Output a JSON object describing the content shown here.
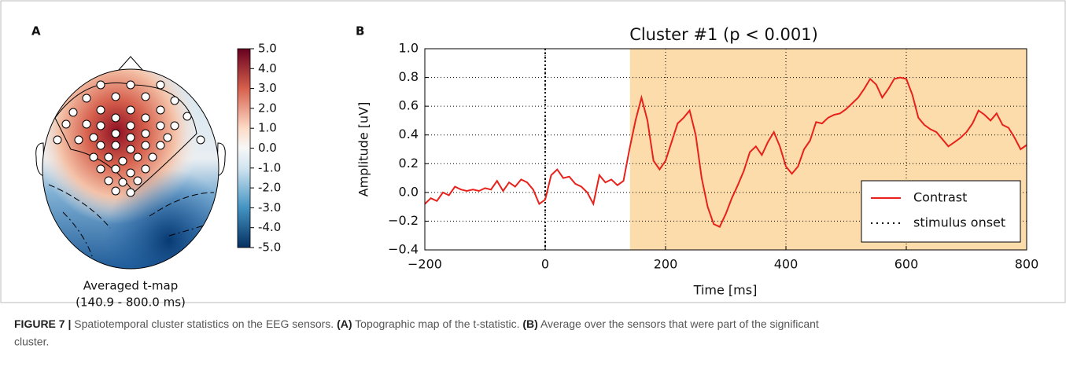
{
  "chart_data": [
    {
      "type": "topomap",
      "panel_label": "A",
      "labels": [
        "Averaged t-map",
        "(140.9 - 800.0 ms)"
      ],
      "clim": [
        -5,
        5
      ],
      "cticks": [
        {
          "value": 5,
          "label": "5.0"
        },
        {
          "value": 4,
          "label": "4.0"
        },
        {
          "value": 3,
          "label": "3.0"
        },
        {
          "value": 2,
          "label": "2.0"
        },
        {
          "value": 1,
          "label": "1.0"
        },
        {
          "value": 0,
          "label": "0.0"
        },
        {
          "value": -1,
          "label": "-1.0"
        },
        {
          "value": -2,
          "label": "-2.0"
        },
        {
          "value": -3,
          "label": "-3.0"
        },
        {
          "value": -4,
          "label": "-4.0"
        },
        {
          "value": -5,
          "label": "-5.0"
        }
      ]
    },
    {
      "type": "line",
      "panel_label": "B",
      "title": "Cluster #1 (p < 0.001)",
      "xlabel": "Time [ms]",
      "ylabel": "Amplitude [uV]",
      "xlim": [
        -200,
        800
      ],
      "ylim": [
        -0.4,
        1.0
      ],
      "xticks": [
        {
          "value": -200,
          "label": "−200"
        },
        0,
        200,
        400,
        600,
        800
      ],
      "yticks": [
        {
          "value": -0.4,
          "label": "−0.4"
        },
        {
          "value": -0.2,
          "label": "−0.2"
        },
        {
          "value": 0,
          "label": "0.0"
        },
        0.2,
        0.4,
        0.6,
        0.8,
        {
          "value": 1,
          "label": "1.0"
        }
      ],
      "grid": true,
      "legend": "lower right",
      "shade": {
        "range": [
          140.9,
          800
        ],
        "color": "#fbdcaa"
      },
      "x": [
        -200,
        -190,
        -180,
        -170,
        -160,
        -150,
        -140,
        -130,
        -120,
        -110,
        -100,
        -90,
        -80,
        -70,
        -60,
        -50,
        -40,
        -30,
        -20,
        -10,
        0,
        10,
        20,
        30,
        40,
        50,
        60,
        70,
        80,
        90,
        100,
        110,
        120,
        130,
        140,
        150,
        160,
        170,
        180,
        190,
        200,
        210,
        220,
        230,
        240,
        250,
        260,
        270,
        280,
        290,
        300,
        310,
        320,
        330,
        340,
        350,
        360,
        370,
        380,
        390,
        400,
        410,
        420,
        430,
        440,
        450,
        460,
        470,
        480,
        490,
        500,
        510,
        520,
        530,
        540,
        550,
        560,
        570,
        580,
        590,
        600,
        610,
        620,
        630,
        640,
        650,
        660,
        670,
        680,
        690,
        700,
        710,
        720,
        730,
        740,
        750,
        760,
        770,
        780,
        790,
        800
      ],
      "series": [
        {
          "name": "Contrast",
          "color": "#e8211b",
          "values": [
            -0.08,
            -0.04,
            -0.06,
            0.0,
            -0.02,
            0.04,
            0.02,
            0.01,
            0.02,
            0.01,
            0.03,
            0.02,
            0.08,
            0.01,
            0.07,
            0.04,
            0.09,
            0.07,
            0.02,
            -0.08,
            -0.05,
            0.12,
            0.16,
            0.1,
            0.11,
            0.06,
            0.04,
            0.0,
            -0.08,
            0.12,
            0.07,
            0.09,
            0.05,
            0.08,
            0.3,
            0.5,
            0.66,
            0.5,
            0.22,
            0.16,
            0.22,
            0.35,
            0.48,
            0.52,
            0.57,
            0.4,
            0.1,
            -0.1,
            -0.22,
            -0.24,
            -0.15,
            -0.04,
            0.05,
            0.15,
            0.28,
            0.32,
            0.26,
            0.35,
            0.42,
            0.32,
            0.18,
            0.13,
            0.18,
            0.3,
            0.36,
            0.49,
            0.48,
            0.52,
            0.54,
            0.55,
            0.58,
            0.62,
            0.66,
            0.72,
            0.79,
            0.75,
            0.66,
            0.72,
            0.79,
            0.8,
            0.79,
            0.68,
            0.52,
            0.47,
            0.44,
            0.42,
            0.37,
            0.32,
            0.35,
            0.38,
            0.42,
            0.48,
            0.57,
            0.54,
            0.5,
            0.55,
            0.47,
            0.45,
            0.38,
            0.3,
            0.33
          ]
        }
      ],
      "vlines": [
        {
          "name": "stimulus onset",
          "x": 0,
          "color": "#000000"
        }
      ]
    }
  ],
  "caption": {
    "label": "FIGURE 7 |",
    "text": "Spatiotemporal cluster statistics on the EEG sensors.",
    "a_label": "(A)",
    "a_text": "Topographic map of the t-statistic.",
    "b_label": "(B)",
    "b_text": "Average over the sensors that were part of the significant",
    "b_text_2": "cluster."
  }
}
